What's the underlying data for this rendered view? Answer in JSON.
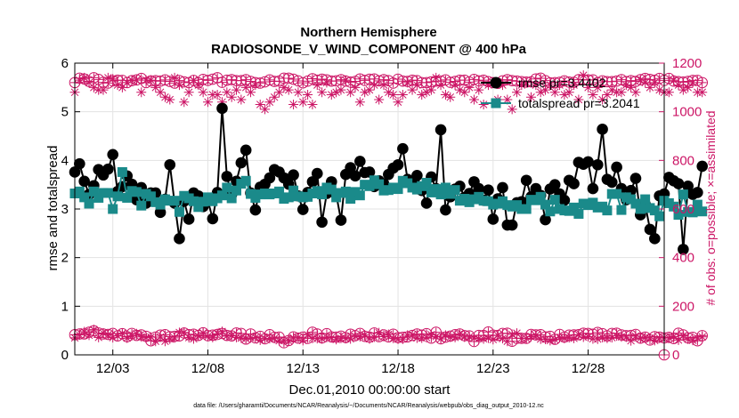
{
  "chart_data": {
    "type": "line",
    "title": "Northern Hemisphere",
    "subtitle": "RADIOSONDE_V_WIND_COMPONENT @ 400 hPa",
    "xlabel": "Dec.01,2010 00:00:00 start",
    "ylabel": "rmse and totalspread",
    "ylabel_right": "# of obs: o=possible; ×=assimilated",
    "footnote": "data file: /Users/gharamti/Documents/NCAR/Reanalysis/~/Documents/NCAR/Reanalysis/webpub/obs_diag_output_2010-12.nc",
    "xlim": [
      1,
      32
    ],
    "ylim": [
      0,
      6
    ],
    "ylim_right": [
      0,
      1200
    ],
    "grid": true,
    "x_ticks": [
      3,
      8,
      13,
      18,
      23,
      28
    ],
    "x_tick_labels": [
      "12/03",
      "12/08",
      "12/13",
      "12/18",
      "12/23",
      "12/28"
    ],
    "y_ticks": [
      0,
      1,
      2,
      3,
      4,
      5,
      6
    ],
    "y_tick_labels": [
      "0",
      "1",
      "2",
      "3",
      "4",
      "5",
      "6"
    ],
    "y_right_ticks": [
      0,
      200,
      400,
      600,
      800,
      1000,
      1200
    ],
    "y_right_tick_labels": [
      "0",
      "200",
      "400",
      "600",
      "800",
      "1000",
      "1200"
    ],
    "colors": {
      "rmse": "#000000",
      "spread": "#1a8a8a",
      "obs": "#cc1666"
    },
    "legend": {
      "location": "top-right",
      "entries": [
        "rmse pr=3.4402",
        "totalspread pr=3.2041"
      ]
    },
    "series": [
      {
        "name": "rmse pr=3.4402",
        "axis": "left",
        "x_start": 1,
        "x_step": 0.25,
        "values": [
          3.76,
          3.93,
          3.57,
          3.3,
          3.48,
          3.81,
          3.7,
          3.82,
          4.12,
          3.36,
          3.46,
          3.68,
          3.51,
          3.19,
          3.44,
          3.12,
          3.33,
          3.33,
          2.93,
          3.2,
          3.91,
          3.12,
          2.39,
          3.16,
          2.79,
          3.33,
          3.27,
          3.05,
          3.17,
          2.8,
          3.34,
          5.07,
          3.67,
          3.3,
          3.57,
          3.95,
          4.21,
          3.33,
          2.98,
          3.45,
          3.51,
          3.64,
          3.81,
          3.76,
          3.64,
          3.51,
          3.7,
          3.27,
          2.99,
          3.34,
          3.56,
          3.73,
          2.73,
          3.32,
          3.56,
          3.3,
          2.77,
          3.71,
          3.85,
          3.68,
          3.98,
          3.75,
          3.76,
          3.46,
          3.58,
          3.52,
          3.71,
          3.84,
          3.91,
          4.24,
          3.61,
          3.55,
          3.69,
          3.38,
          3.12,
          3.66,
          3.42,
          4.63,
          2.98,
          3.25,
          3.41,
          3.47,
          3.24,
          3.32,
          3.56,
          3.42,
          3.18,
          3.39,
          2.79,
          3.21,
          3.44,
          2.67,
          2.67,
          3.13,
          3.15,
          3.59,
          3.25,
          3.42,
          3.28,
          2.78,
          3.41,
          3.5,
          3.31,
          3.18,
          3.59,
          3.52,
          3.96,
          3.92,
          3.97,
          3.42,
          3.91,
          4.64,
          3.61,
          3.55,
          3.86,
          3.42,
          3.19,
          3.38,
          3.63,
          2.88,
          3.1,
          2.58,
          2.39,
          3.27,
          3.31,
          3.65,
          3.58,
          3.52,
          2.17,
          3.47,
          3.3,
          3.34,
          3.88
        ]
      },
      {
        "name": "totalspread pr=3.2041",
        "axis": "left",
        "x_start": 1,
        "x_step": 0.25,
        "values": [
          3.32,
          3.36,
          3.24,
          3.11,
          3.36,
          3.23,
          3.33,
          3.33,
          3.0,
          3.26,
          3.76,
          3.23,
          3.37,
          3.35,
          3.07,
          3.31,
          3.26,
          3.14,
          3.09,
          3.2,
          3.17,
          3.17,
          2.94,
          3.27,
          3.22,
          3.16,
          3.04,
          3.15,
          3.24,
          3.16,
          3.22,
          3.28,
          3.44,
          3.22,
          3.38,
          3.52,
          3.58,
          3.31,
          3.23,
          3.3,
          3.32,
          3.3,
          3.32,
          3.36,
          3.21,
          3.24,
          3.38,
          3.26,
          3.24,
          3.25,
          3.32,
          3.37,
          3.3,
          3.44,
          3.4,
          3.24,
          3.33,
          3.36,
          3.21,
          3.35,
          3.28,
          3.5,
          3.47,
          3.59,
          3.51,
          3.38,
          3.39,
          3.44,
          3.41,
          3.58,
          3.53,
          3.44,
          3.4,
          3.47,
          3.54,
          3.34,
          3.41,
          3.3,
          3.44,
          3.31,
          3.39,
          3.17,
          3.21,
          3.14,
          3.2,
          3.25,
          3.17,
          3.16,
          3.09,
          3.11,
          3.16,
          3.08,
          3.05,
          3.08,
          3.0,
          3.0,
          3.19,
          3.18,
          3.25,
          3.09,
          2.95,
          3.19,
          3.0,
          2.97,
          2.96,
          3.03,
          2.9,
          3.11,
          3.08,
          3.13,
          3.03,
          3.05,
          2.97,
          3.31,
          3.31,
          2.98,
          3.24,
          3.2,
          3.11,
          3.0,
          3.2,
          3.02,
          2.97,
          2.85,
          3.17,
          3.12,
          3.05,
          2.88,
          3.3,
          2.94,
          2.93,
          3.09,
          2.95
        ]
      },
      {
        "name": "possible",
        "axis": "right",
        "marker": "circle",
        "x_start": 1,
        "x_step": 0.25,
        "values": [
          1120,
          1138,
          1135,
          1125,
          1140,
          1133,
          1121,
          1118,
          1127,
          1130,
          1129,
          1120,
          1128,
          1131,
          1137,
          1120,
          1127,
          1128,
          1126,
          1131,
          1125,
          1118,
          1128,
          1123,
          1120,
          1129,
          1119,
          1133,
          1129,
          1134,
          1140,
          1121,
          1130,
          1132,
          1128,
          1128,
          1132,
          1125,
          1120,
          1118,
          1123,
          1131,
          1125,
          1126,
          1138,
          1138,
          1134,
          1127,
          1119,
          1126,
          1136,
          1130,
          1134,
          1131,
          1126,
          1127,
          1132,
          1126,
          1122,
          1125,
          1135,
          1129,
          1134,
          1135,
          1127,
          1132,
          1128,
          1118,
          1134,
          1126,
          1125,
          1130,
          1128,
          1120,
          1120,
          1123,
          1126,
          1126,
          1131,
          1121,
          1125,
          1130,
          1130,
          1122,
          1133,
          1127,
          1130,
          1124,
          1120,
          1117,
          1127,
          1132,
          1128,
          1126,
          1124,
          1122,
          1123,
          1135,
          1138,
          1128,
          1119,
          1120,
          1121,
          1127,
          1122,
          1121,
          1132,
          1132,
          1131,
          1131,
          1120,
          1127,
          1124,
          1124,
          1126,
          1132,
          1124,
          1128,
          1125,
          1132,
          1137,
          1133,
          1130,
          1137,
          1129,
          1137,
          1126,
          1124,
          1122,
          1125,
          1129,
          1129,
          1120
        ]
      },
      {
        "name": "assimilated",
        "axis": "right",
        "marker": "asterisk",
        "x_start": 1,
        "x_step": 0.25,
        "values": [
          1080,
          1130,
          1140,
          1120,
          1100,
          1090,
          1090,
          1140,
          1135,
          1110,
          1100,
          1120,
          1130,
          1130,
          1080,
          1130,
          1130,
          1100,
          1080,
          1060,
          1050,
          1140,
          1110,
          1040,
          1080,
          1130,
          1110,
          1080,
          1040,
          1070,
          1070,
          1040,
          1080,
          1060,
          1090,
          1050,
          1100,
          1080,
          1110,
          1030,
          1010,
          1040,
          1060,
          1080,
          1100,
          1090,
          1030,
          1080,
          1040,
          1070,
          1030,
          1110,
          1080,
          1120,
          1070,
          1080,
          1090,
          1130,
          1080,
          1100,
          1040,
          1080,
          1090,
          1110,
          1050,
          1110,
          1080,
          1070,
          1040,
          1070,
          1120,
          1090,
          1110,
          1070,
          1080,
          1090,
          1140,
          1110,
          1070,
          1060,
          1110,
          1090,
          1080,
          1100,
          1050,
          1090,
          1030,
          1110,
          1120,
          1050,
          1110,
          1050,
          1010,
          1080,
          1110,
          1120,
          1060,
          1110,
          1080,
          1090,
          1110,
          1080,
          1110,
          1070,
          1080,
          1110,
          1050,
          1150,
          1100,
          1070,
          1100,
          1050,
          1070,
          1090,
          1080,
          1080,
          1110,
          1100,
          1080,
          1130,
          1120,
          1100,
          1120,
          1090,
          1080,
          1080,
          1130,
          1110,
          1090,
          1100,
          1120,
          1080,
          1080
        ]
      },
      {
        "name": "possible-low",
        "axis": "right",
        "marker": "circle",
        "x_start": 1,
        "x_step": 0.25,
        "values": [
          83,
          86,
          86,
          93,
          99,
          90,
          86,
          84,
          88,
          78,
          87,
          75,
          88,
          80,
          82,
          76,
          58,
          73,
          81,
          83,
          75,
          76,
          78,
          90,
          83,
          85,
          80,
          91,
          79,
          81,
          84,
          88,
          80,
          78,
          90,
          88,
          65,
          86,
          70,
          76,
          66,
          83,
          72,
          73,
          50,
          59,
          74,
          69,
          73,
          68,
          93,
          86,
          70,
          87,
          74,
          73,
          77,
          71,
          85,
          79,
          88,
          76,
          73,
          90,
          75,
          82,
          74,
          85,
          71,
          72,
          74,
          80,
          86,
          81,
          87,
          69,
          93,
          66,
          73,
          77,
          83,
          86,
          79,
          78,
          55,
          80,
          80,
          94,
          81,
          80,
          88,
          89,
          56,
          68,
          68,
          68,
          84,
          82,
          83,
          74,
          76,
          64,
          84,
          73,
          81,
          82,
          83,
          89,
          88,
          85,
          92,
          87,
          78,
          88,
          89,
          82,
          79,
          80,
          84,
          69,
          73,
          61,
          75,
          73,
          70,
          72,
          67,
          89,
          82,
          70,
          72,
          58,
          79
        ]
      },
      {
        "name": "assimilated-low",
        "axis": "right",
        "marker": "asterisk",
        "x_start": 1,
        "x_step": 0.25,
        "values": [
          70,
          82,
          95,
          81,
          104,
          72,
          89,
          83,
          71,
          78,
          89,
          69,
          78,
          87,
          74,
          71,
          73,
          56,
          73,
          56,
          65,
          70,
          92,
          92,
          71,
          66,
          77,
          90,
          76,
          72,
          87,
          96,
          77,
          80,
          72,
          69,
          67,
          70,
          72,
          61,
          67,
          67,
          68,
          58,
          59,
          57,
          70,
          71,
          59,
          82,
          68,
          67,
          66,
          72,
          71,
          63,
          68,
          67,
          66,
          76,
          75,
          82,
          66,
          73,
          91,
          75,
          84,
          68,
          65,
          65,
          81,
          82,
          69,
          69,
          71,
          83,
          75,
          66,
          81,
          73,
          72,
          84,
          73,
          74,
          69,
          67,
          66,
          69,
          63,
          80,
          67,
          56,
          84,
          89,
          68,
          67,
          75,
          80,
          65,
          64,
          59,
          62,
          71,
          68,
          71,
          68,
          83,
          73,
          75,
          66,
          65,
          72,
          68,
          71,
          78,
          74,
          73,
          58,
          77,
          68,
          72,
          69,
          59,
          69,
          70,
          69,
          75,
          61,
          78,
          65,
          60,
          69,
          74
        ]
      },
      {
        "name": "possible-edge",
        "axis": "right",
        "marker": "circle",
        "points": [
          [
            32,
            0
          ]
        ]
      }
    ]
  }
}
